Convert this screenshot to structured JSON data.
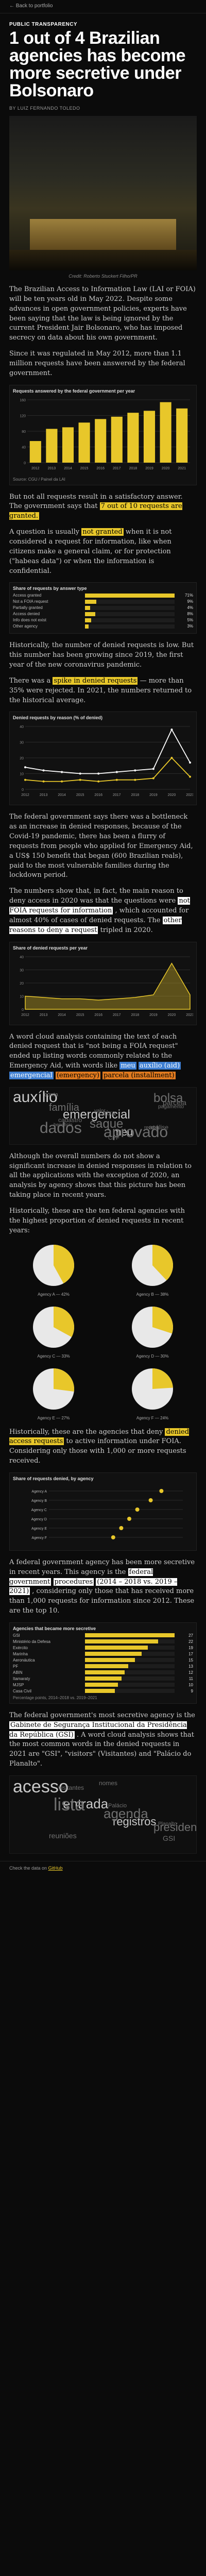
{
  "nav": {
    "back": "← Back to portfolio"
  },
  "article": {
    "kicker": "PUBLIC TRANSPARENCY",
    "headline": "1 out of 4 Brazilian agencies has become more secretive under Bolsonaro",
    "byline": "BY LUIZ FERNANDO TOLEDO",
    "photo_caption": "Credit: Roberto Stuckert Filho/PR",
    "paragraphs": {
      "p1": "The Brazilian Access to Information Law (LAI or FOIA) will be ten years old in May 2022. Despite some advances in open government policies, experts have been saying that the law is being ignored by the current President Jair Bolsonaro, who has imposed secrecy on data about his own government.",
      "p2": "Since it was regulated in May 2012, more than 1.1 million requests have been answered by the federal government.",
      "p3a": "But not all requests result in a satisfactory answer. The government says that",
      "p3b": "7 out of 10 requests are granted.",
      "p4a": "A question is usually",
      "p4b": "not granted",
      "p4c": "when it is not considered a request for information, like when citizens make a general claim, or for protection (\"habeas data\") or when the information is confidential.",
      "p5": "Historically, the number of denied requests is low. But this number has been growing since 2019, the first year of the new coronavirus pandemic.",
      "p6a": "There was a",
      "p6b": "spike in denied requests",
      "p6c": "— more than 35% were rejected. In 2021, the numbers returned to the historical average.",
      "p7": "The federal government says there was a bottleneck as an increase in denied responses, because of the Covid-19 pandemic, there has been a flurry of requests from people who applied for Emergency Aid, a US$ 150 benefit that began (600 Brazilian reals), paid to the most vulnerable families during the lockdown period.",
      "p8a": "The numbers show that, in fact, the main reason to deny access in 2020 was that the questions were",
      "p8b": "not FOIA requests for information",
      "p8c": ", which accounted for almost 40% of cases of denied requests. The",
      "p8d": "other reasons to deny a request",
      "p8e": "tripled in 2020.",
      "p9": "A word cloud analysis containing the text of each denied request that is \"not being a FOIA request\" ended up listing words commonly related to the Emergency Aid, with words like",
      "p9w1": "meu",
      "p9w2": "auxílio (aid)",
      "p9w3": "emergencial",
      "p9w4": "(emergency)",
      "p9w5": "parcela (installment)",
      "p10": "Although the overall numbers do not show a significant increase in denied responses in relation to all the applications with the exception of 2020, an analysis by agency shows that this picture has been taking place in recent years.",
      "p11": "Historically, these are the ten federal agencies with the highest proportion of denied requests in recent years:",
      "p12a": "Historically, these are the agencies that deny",
      "p12b": "denied access requests",
      "p12c": "to active information under FOIA. Considering only those with 1,000 or more requests received.",
      "p13a": "A federal government agency has been more secretive in recent years. This agency is the",
      "p13b": "federal government",
      "p13c": "procedures",
      "p13d": "(2014 – 2018 vs. 2019 – 2021)",
      "p13e": ", considering only those that has received more than 1,000 requests for information since 2012. These are the top 10.",
      "p14a": "The federal government's most secretive agency is the",
      "p14b": "Gabinete de Segurança Institucional da Presidência da República (GSI)",
      "p14c": ". A word cloud analysis shows that the most common words in the denied requests in 2021 are \"GSI\", \"visitors\" (Visitantes) and \"Palácio do Planalto\".",
      "p15": "Check the data in the GitHub."
    }
  },
  "charts": {
    "c1_title": "Requests answered by the federal government per year",
    "c1_note": "Source: CGU / Painel da LAI",
    "c2_title": "Share of requests by answer type",
    "c3_title": "Denied requests by reason (% of denied)",
    "c4_title": "Share of denied requests per year",
    "c5_title": "Share of requests denied, by agency",
    "c6_title": "Agencies that became more secretive",
    "c6_note": "Percentage points, 2014–2018 vs. 2019–2021"
  },
  "chart_data": [
    {
      "type": "bar",
      "title": "Requests answered by the federal government per year",
      "categories": [
        "2012",
        "2013",
        "2014",
        "2015",
        "2016",
        "2017",
        "2018",
        "2019",
        "2020",
        "2021"
      ],
      "values": [
        55,
        86,
        90,
        102,
        111,
        117,
        127,
        132,
        154,
        138
      ],
      "ylabel": "Thousands of requests",
      "ylim": [
        0,
        160
      ],
      "color": "#e8c72a"
    },
    {
      "type": "bar",
      "title": "Share of requests by answer type",
      "categories": [
        "Access granted",
        "Not a FOIA request",
        "Partially granted",
        "Access denied",
        "Info does not exist",
        "Other agency"
      ],
      "values": [
        71,
        9,
        4,
        8,
        5,
        3
      ],
      "ylabel": "%",
      "color": "#e8c72a"
    },
    {
      "type": "line",
      "title": "Denied requests by reason (% of denied)",
      "x": [
        "2012",
        "2013",
        "2014",
        "2015",
        "2016",
        "2017",
        "2018",
        "2019",
        "2020",
        "2021"
      ],
      "series": [
        {
          "name": "Not FOIA request",
          "values": [
            14,
            12,
            11,
            10,
            10,
            11,
            12,
            13,
            38,
            17
          ],
          "color": "#ffffff"
        },
        {
          "name": "Other reasons",
          "values": [
            6,
            5,
            5,
            6,
            5,
            6,
            6,
            7,
            20,
            8
          ],
          "color": "#e8c72a"
        }
      ],
      "ylim": [
        0,
        40
      ]
    },
    {
      "type": "area",
      "title": "Share of denied requests per year",
      "x": [
        "2012",
        "2013",
        "2014",
        "2015",
        "2016",
        "2017",
        "2018",
        "2019",
        "2020",
        "2021"
      ],
      "values": [
        10,
        9,
        8,
        8,
        7,
        8,
        9,
        11,
        35,
        11
      ],
      "ylim": [
        0,
        40
      ],
      "color": "#e8c72a"
    },
    {
      "type": "pie",
      "title": "Share of requests denied, by agency",
      "categories": [
        "Agency A",
        "Agency B",
        "Agency C",
        "Agency D",
        "Agency E",
        "Agency F"
      ],
      "values": [
        42,
        38,
        33,
        30,
        27,
        24
      ],
      "color": "#e8c72a"
    },
    {
      "type": "bar",
      "title": "Agencies that became more secretive",
      "categories": [
        "GSI",
        "Ministério da Defesa",
        "Exército",
        "Marinha",
        "Aeronáutica",
        "PF",
        "ABIN",
        "Itamaraty",
        "MJSP",
        "Casa Civil"
      ],
      "values": [
        27,
        22,
        19,
        17,
        15,
        13,
        12,
        11,
        10,
        9
      ],
      "ylabel": "p.p.",
      "color": "#e8c72a"
    }
  ],
  "wordcloud1": [
    "auxílio",
    "emergencial",
    "meu",
    "parcela",
    "cadastro",
    "CPF",
    "pagamento",
    "benefício",
    "aprovado",
    "bolsa",
    "família",
    "caixa",
    "análise",
    "conta",
    "valor",
    "recebi",
    "dados",
    "saque"
  ],
  "wordcloud2": [
    "acesso",
    "entrada",
    "registros",
    "GSI",
    "visitantes",
    "Palácio",
    "Planalto",
    "lista",
    "agenda",
    "presidente",
    "reuniões",
    "nomes"
  ],
  "footer": {
    "text": "Check the data on",
    "link": "GitHub"
  }
}
